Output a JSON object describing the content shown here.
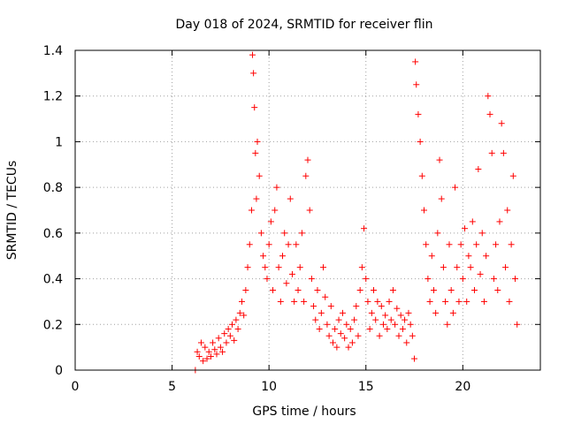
{
  "chart_data": {
    "type": "scatter",
    "title": "Day 018 of 2024, SRMTID for receiver flin",
    "xlabel": "GPS time / hours",
    "ylabel": "SRMTID / TECUs",
    "xlim": [
      0,
      24
    ],
    "ylim": [
      0,
      1.4
    ],
    "x_ticks": [
      0,
      5,
      10,
      15,
      20
    ],
    "x_tick_labels": [
      "0",
      "5",
      "10",
      "15",
      "20"
    ],
    "y_ticks": [
      0,
      0.2,
      0.4,
      0.6,
      0.8,
      1.0,
      1.2,
      1.4
    ],
    "y_tick_labels": [
      "0",
      "0.2",
      "0.4",
      "0.6",
      "0.8",
      "1",
      "1.2",
      "1.4"
    ],
    "grid": true,
    "marker": "+",
    "color": "#ff0000",
    "series": [
      {
        "name": "SRMTID",
        "points": [
          [
            6.2,
            0.0
          ],
          [
            6.3,
            0.08
          ],
          [
            6.4,
            0.06
          ],
          [
            6.5,
            0.12
          ],
          [
            6.6,
            0.04
          ],
          [
            6.7,
            0.1
          ],
          [
            6.8,
            0.05
          ],
          [
            6.9,
            0.08
          ],
          [
            7.0,
            0.06
          ],
          [
            7.1,
            0.12
          ],
          [
            7.2,
            0.09
          ],
          [
            7.3,
            0.07
          ],
          [
            7.4,
            0.14
          ],
          [
            7.5,
            0.1
          ],
          [
            7.6,
            0.08
          ],
          [
            7.7,
            0.16
          ],
          [
            7.8,
            0.12
          ],
          [
            7.9,
            0.18
          ],
          [
            8.0,
            0.15
          ],
          [
            8.1,
            0.2
          ],
          [
            8.2,
            0.13
          ],
          [
            8.3,
            0.22
          ],
          [
            8.4,
            0.18
          ],
          [
            8.5,
            0.25
          ],
          [
            8.6,
            0.3
          ],
          [
            8.7,
            0.24
          ],
          [
            8.8,
            0.35
          ],
          [
            8.9,
            0.45
          ],
          [
            9.0,
            0.55
          ],
          [
            9.1,
            0.7
          ],
          [
            9.15,
            1.38
          ],
          [
            9.2,
            1.3
          ],
          [
            9.25,
            1.15
          ],
          [
            9.3,
            0.95
          ],
          [
            9.35,
            0.75
          ],
          [
            9.4,
            1.0
          ],
          [
            9.5,
            0.85
          ],
          [
            9.6,
            0.6
          ],
          [
            9.7,
            0.5
          ],
          [
            9.8,
            0.45
          ],
          [
            9.9,
            0.4
          ],
          [
            10.0,
            0.55
          ],
          [
            10.1,
            0.65
          ],
          [
            10.2,
            0.35
          ],
          [
            10.3,
            0.7
          ],
          [
            10.4,
            0.8
          ],
          [
            10.5,
            0.45
          ],
          [
            10.6,
            0.3
          ],
          [
            10.7,
            0.5
          ],
          [
            10.8,
            0.6
          ],
          [
            10.9,
            0.38
          ],
          [
            11.0,
            0.55
          ],
          [
            11.1,
            0.75
          ],
          [
            11.2,
            0.42
          ],
          [
            11.3,
            0.3
          ],
          [
            11.4,
            0.55
          ],
          [
            11.5,
            0.35
          ],
          [
            11.6,
            0.45
          ],
          [
            11.7,
            0.6
          ],
          [
            11.8,
            0.3
          ],
          [
            11.9,
            0.85
          ],
          [
            12.0,
            0.92
          ],
          [
            12.1,
            0.7
          ],
          [
            12.2,
            0.4
          ],
          [
            12.3,
            0.28
          ],
          [
            12.4,
            0.22
          ],
          [
            12.5,
            0.35
          ],
          [
            12.6,
            0.18
          ],
          [
            12.7,
            0.25
          ],
          [
            12.8,
            0.45
          ],
          [
            12.9,
            0.32
          ],
          [
            13.0,
            0.2
          ],
          [
            13.1,
            0.15
          ],
          [
            13.2,
            0.28
          ],
          [
            13.3,
            0.12
          ],
          [
            13.4,
            0.18
          ],
          [
            13.5,
            0.1
          ],
          [
            13.6,
            0.22
          ],
          [
            13.7,
            0.16
          ],
          [
            13.8,
            0.25
          ],
          [
            13.9,
            0.14
          ],
          [
            14.0,
            0.2
          ],
          [
            14.1,
            0.1
          ],
          [
            14.2,
            0.18
          ],
          [
            14.3,
            0.12
          ],
          [
            14.4,
            0.22
          ],
          [
            14.5,
            0.28
          ],
          [
            14.6,
            0.15
          ],
          [
            14.7,
            0.35
          ],
          [
            14.8,
            0.45
          ],
          [
            14.9,
            0.62
          ],
          [
            15.0,
            0.4
          ],
          [
            15.1,
            0.3
          ],
          [
            15.2,
            0.18
          ],
          [
            15.3,
            0.25
          ],
          [
            15.4,
            0.35
          ],
          [
            15.5,
            0.22
          ],
          [
            15.6,
            0.3
          ],
          [
            15.7,
            0.15
          ],
          [
            15.8,
            0.28
          ],
          [
            15.9,
            0.2
          ],
          [
            16.0,
            0.24
          ],
          [
            16.1,
            0.18
          ],
          [
            16.2,
            0.3
          ],
          [
            16.3,
            0.22
          ],
          [
            16.4,
            0.35
          ],
          [
            16.5,
            0.2
          ],
          [
            16.6,
            0.27
          ],
          [
            16.7,
            0.15
          ],
          [
            16.8,
            0.24
          ],
          [
            16.9,
            0.18
          ],
          [
            17.0,
            0.22
          ],
          [
            17.1,
            0.12
          ],
          [
            17.2,
            0.25
          ],
          [
            17.3,
            0.2
          ],
          [
            17.4,
            0.15
          ],
          [
            17.5,
            0.05
          ],
          [
            17.55,
            1.35
          ],
          [
            17.6,
            1.25
          ],
          [
            17.7,
            1.12
          ],
          [
            17.8,
            1.0
          ],
          [
            17.9,
            0.85
          ],
          [
            18.0,
            0.7
          ],
          [
            18.1,
            0.55
          ],
          [
            18.2,
            0.4
          ],
          [
            18.3,
            0.3
          ],
          [
            18.4,
            0.5
          ],
          [
            18.5,
            0.35
          ],
          [
            18.6,
            0.25
          ],
          [
            18.7,
            0.6
          ],
          [
            18.8,
            0.92
          ],
          [
            18.9,
            0.75
          ],
          [
            19.0,
            0.45
          ],
          [
            19.1,
            0.3
          ],
          [
            19.2,
            0.2
          ],
          [
            19.3,
            0.55
          ],
          [
            19.4,
            0.35
          ],
          [
            19.5,
            0.25
          ],
          [
            19.6,
            0.8
          ],
          [
            19.7,
            0.45
          ],
          [
            19.8,
            0.3
          ],
          [
            19.9,
            0.55
          ],
          [
            20.0,
            0.4
          ],
          [
            20.1,
            0.62
          ],
          [
            20.2,
            0.3
          ],
          [
            20.3,
            0.5
          ],
          [
            20.4,
            0.45
          ],
          [
            20.5,
            0.65
          ],
          [
            20.6,
            0.35
          ],
          [
            20.7,
            0.55
          ],
          [
            20.8,
            0.88
          ],
          [
            20.9,
            0.42
          ],
          [
            21.0,
            0.6
          ],
          [
            21.1,
            0.3
          ],
          [
            21.2,
            0.5
          ],
          [
            21.3,
            1.2
          ],
          [
            21.4,
            1.12
          ],
          [
            21.5,
            0.95
          ],
          [
            21.6,
            0.4
          ],
          [
            21.7,
            0.55
          ],
          [
            21.8,
            0.35
          ],
          [
            21.9,
            0.65
          ],
          [
            22.0,
            1.08
          ],
          [
            22.1,
            0.95
          ],
          [
            22.2,
            0.45
          ],
          [
            22.3,
            0.7
          ],
          [
            22.4,
            0.3
          ],
          [
            22.5,
            0.55
          ],
          [
            22.6,
            0.85
          ],
          [
            22.7,
            0.4
          ],
          [
            22.8,
            0.2
          ]
        ]
      }
    ]
  }
}
